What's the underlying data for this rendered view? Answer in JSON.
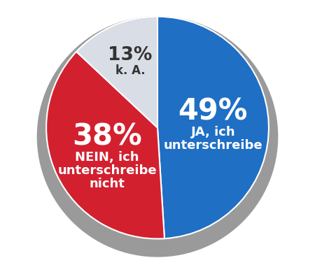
{
  "chart_data": {
    "type": "pie",
    "categories": [
      "JA, ich\nunterschreibe",
      "NEIN, ich\nunterschreibe\nnicht",
      "k. A."
    ],
    "values": [
      49,
      38,
      13
    ],
    "value_labels": [
      "49%",
      "38%",
      "13%"
    ],
    "colors": [
      "#1f6fc4",
      "#d3202f",
      "#d9dde5"
    ],
    "data_labels": true
  }
}
